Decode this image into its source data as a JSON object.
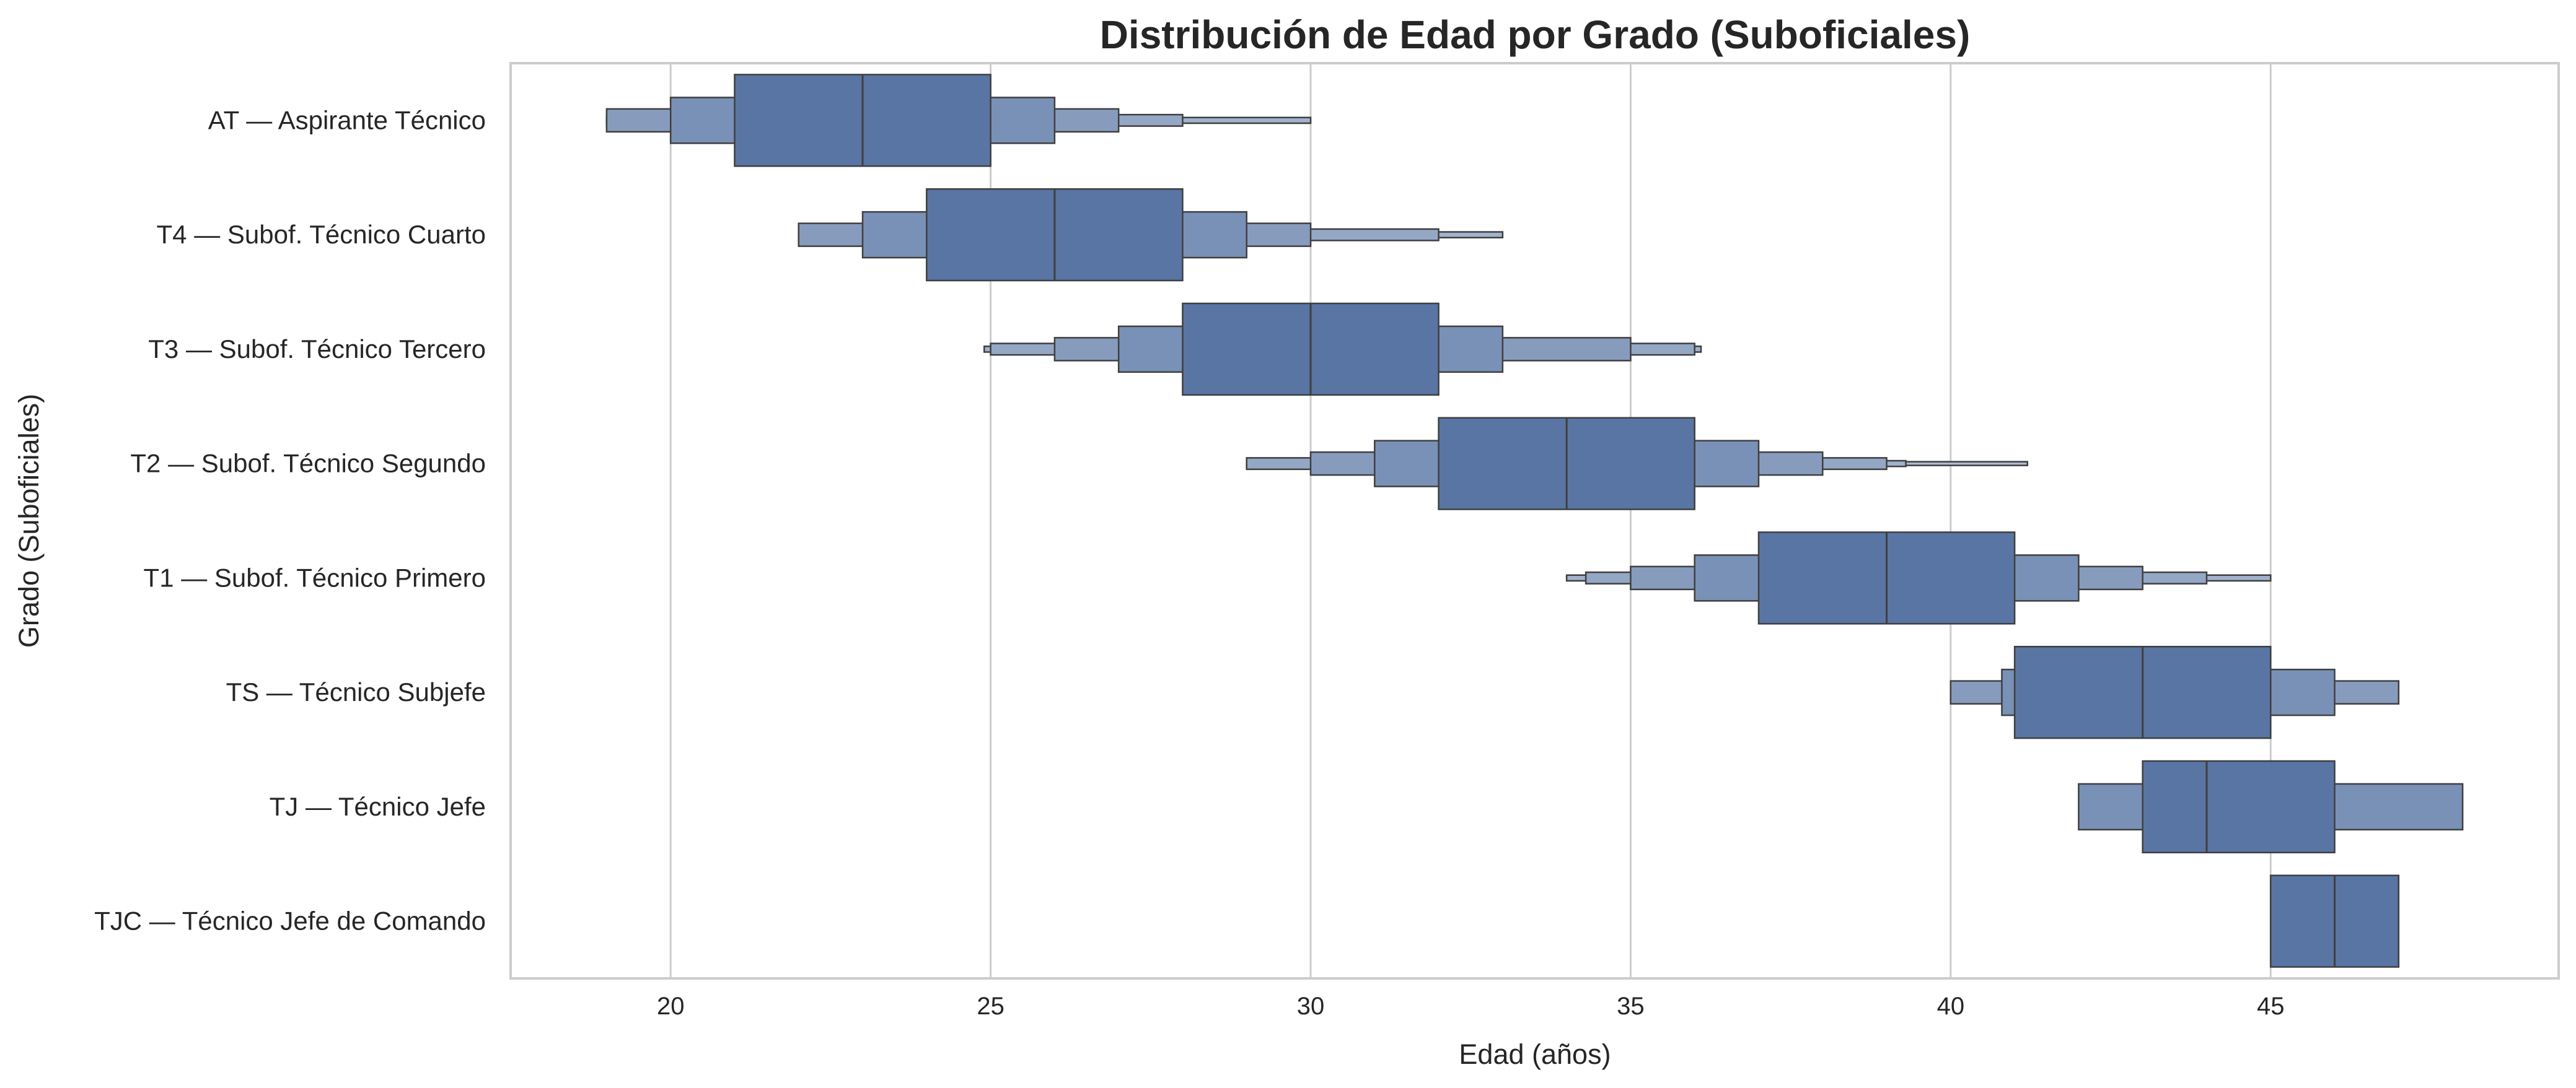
{
  "chart_data": {
    "type": "boxen",
    "title": "Distribución de Edad por Grado (Suboficiales)",
    "xlabel": "Edad (años)",
    "ylabel": "Grado (Suboficiales)",
    "xlim": [
      17.5,
      49.5
    ],
    "xticks": [
      20,
      25,
      30,
      35,
      40,
      45
    ],
    "grid": "vertical",
    "colors": {
      "box": "#5875a4",
      "edge": "#3f3f3f",
      "grid": "#cccccc"
    },
    "categories": [
      {
        "name": "AT — Aspirante Técnico",
        "median": 23,
        "levels": [
          [
            21,
            25
          ],
          [
            20,
            26
          ],
          [
            19,
            27
          ],
          [
            19,
            28
          ],
          [
            19,
            30
          ]
        ]
      },
      {
        "name": "T4 — Subof. Técnico Cuarto",
        "median": 26,
        "levels": [
          [
            24,
            28
          ],
          [
            23,
            29
          ],
          [
            22,
            30
          ],
          [
            22,
            32
          ],
          [
            22,
            33
          ]
        ]
      },
      {
        "name": "T3 — Subof. Técnico Tercero",
        "median": 30,
        "levels": [
          [
            28,
            32
          ],
          [
            27,
            33
          ],
          [
            26,
            35
          ],
          [
            25,
            36
          ],
          [
            24.9,
            36.1
          ]
        ]
      },
      {
        "name": "T2 — Subof. Técnico Segundo",
        "median": 34,
        "levels": [
          [
            32,
            36
          ],
          [
            31,
            37
          ],
          [
            30,
            38
          ],
          [
            29,
            39
          ],
          [
            29,
            39.3
          ],
          [
            29,
            41.2
          ]
        ]
      },
      {
        "name": "T1 — Subof. Técnico Primero",
        "median": 39,
        "levels": [
          [
            37,
            41
          ],
          [
            36,
            42
          ],
          [
            35,
            43
          ],
          [
            34.3,
            44
          ],
          [
            34,
            45
          ]
        ]
      },
      {
        "name": "TS — Técnico Subjefe",
        "median": 43,
        "levels": [
          [
            41,
            45
          ],
          [
            40.8,
            46
          ],
          [
            40,
            47
          ]
        ]
      },
      {
        "name": "TJ — Técnico Jefe",
        "median": 44,
        "levels": [
          [
            43,
            46
          ],
          [
            42,
            48
          ]
        ]
      },
      {
        "name": "TJC — Técnico Jefe de Comando",
        "median": 46,
        "levels": [
          [
            45,
            47
          ]
        ]
      }
    ]
  }
}
